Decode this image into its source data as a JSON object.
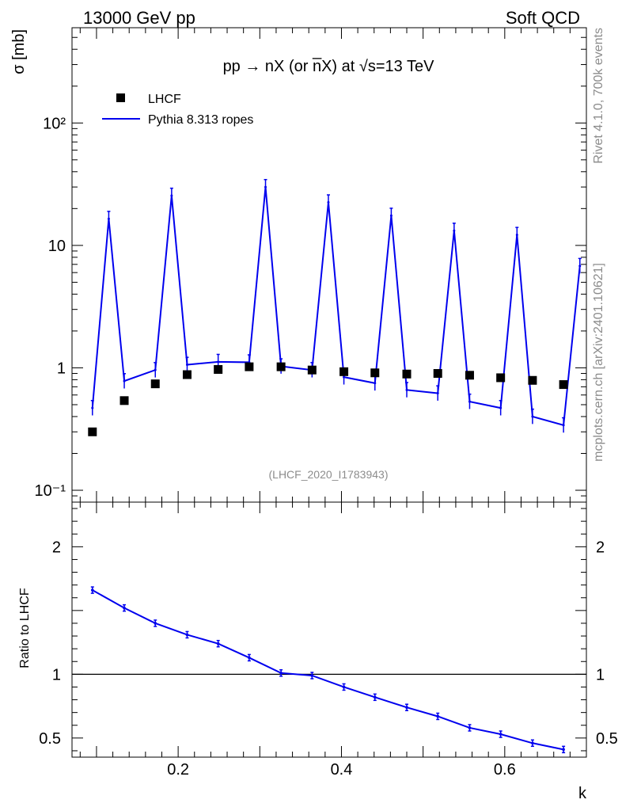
{
  "header": {
    "left": "13000 GeV pp",
    "right": "Soft QCD"
  },
  "side_text": {
    "top": "Rivet 4.1.0,  700k events",
    "bottom": "mcplots.cern.ch [arXiv:2401.10621]"
  },
  "colors": {
    "mc": "#0000ee",
    "data": "#000000",
    "watermark": "#8c8c8c"
  },
  "chart_data": [
    {
      "type": "line",
      "title": "pp → nX (or n̅X) at √s=13 TeV",
      "analysis_label": "(LHCF_2020_I1783943)",
      "ylabel": "σ [mb]",
      "xlabel": "",
      "yscale": "log",
      "xlim": [
        0.07,
        0.7
      ],
      "ylim": [
        0.08,
        600
      ],
      "y_tick_labels": [
        "10⁻¹",
        "1",
        "10",
        "10²"
      ],
      "y_tick_values": [
        0.1,
        1,
        10,
        100
      ],
      "legend": {
        "position": "top-left",
        "entries": [
          "LHCF",
          "Pythia 8.313 ropes"
        ]
      },
      "series": [
        {
          "name": "LHCF",
          "style": "square-markers",
          "x": [
            0.095,
            0.134,
            0.172,
            0.211,
            0.249,
            0.287,
            0.326,
            0.364,
            0.403,
            0.441,
            0.48,
            0.518,
            0.557,
            0.595,
            0.634,
            0.672
          ],
          "y": [
            0.3,
            0.54,
            0.74,
            0.88,
            0.97,
            1.02,
            1.02,
            0.96,
            0.93,
            0.91,
            0.89,
            0.9,
            0.87,
            0.83,
            0.79,
            0.73
          ]
        },
        {
          "name": "Pythia 8.313 ropes",
          "style": "line",
          "x": [
            0.095,
            0.115,
            0.134,
            0.172,
            0.192,
            0.211,
            0.249,
            0.287,
            0.307,
            0.326,
            0.364,
            0.384,
            0.403,
            0.441,
            0.461,
            0.48,
            0.518,
            0.538,
            0.557,
            0.595,
            0.615,
            0.634,
            0.672,
            0.692
          ],
          "y": [
            0.47,
            16.5,
            0.78,
            0.96,
            25.5,
            1.06,
            1.12,
            1.11,
            30.0,
            1.03,
            0.96,
            22.5,
            0.84,
            0.75,
            17.5,
            0.66,
            0.62,
            13.2,
            0.53,
            0.47,
            12.2,
            0.4,
            0.34,
            6.8
          ]
        }
      ]
    },
    {
      "type": "line",
      "title": "",
      "ylabel": "Ratio to LHCF",
      "xlabel": "k",
      "xlim": [
        0.07,
        0.7
      ],
      "ylim": [
        0.35,
        2.35
      ],
      "x_tick_labels": [
        "0.2",
        "0.4",
        "0.6"
      ],
      "x_tick_values": [
        0.2,
        0.4,
        0.6
      ],
      "y_tick_labels": [
        "0.5",
        "1",
        "2"
      ],
      "y_tick_values": [
        0.5,
        1,
        2
      ],
      "reference_line": 1,
      "series": [
        {
          "name": "Pythia 8.313 ropes / LHCF",
          "x": [
            0.095,
            0.134,
            0.172,
            0.211,
            0.249,
            0.287,
            0.326,
            0.364,
            0.403,
            0.441,
            0.48,
            0.518,
            0.557,
            0.595,
            0.634,
            0.672
          ],
          "y": [
            1.66,
            1.52,
            1.4,
            1.31,
            1.24,
            1.13,
            1.01,
            0.99,
            0.9,
            0.82,
            0.74,
            0.67,
            0.58,
            0.53,
            0.46,
            0.41
          ]
        }
      ]
    }
  ]
}
